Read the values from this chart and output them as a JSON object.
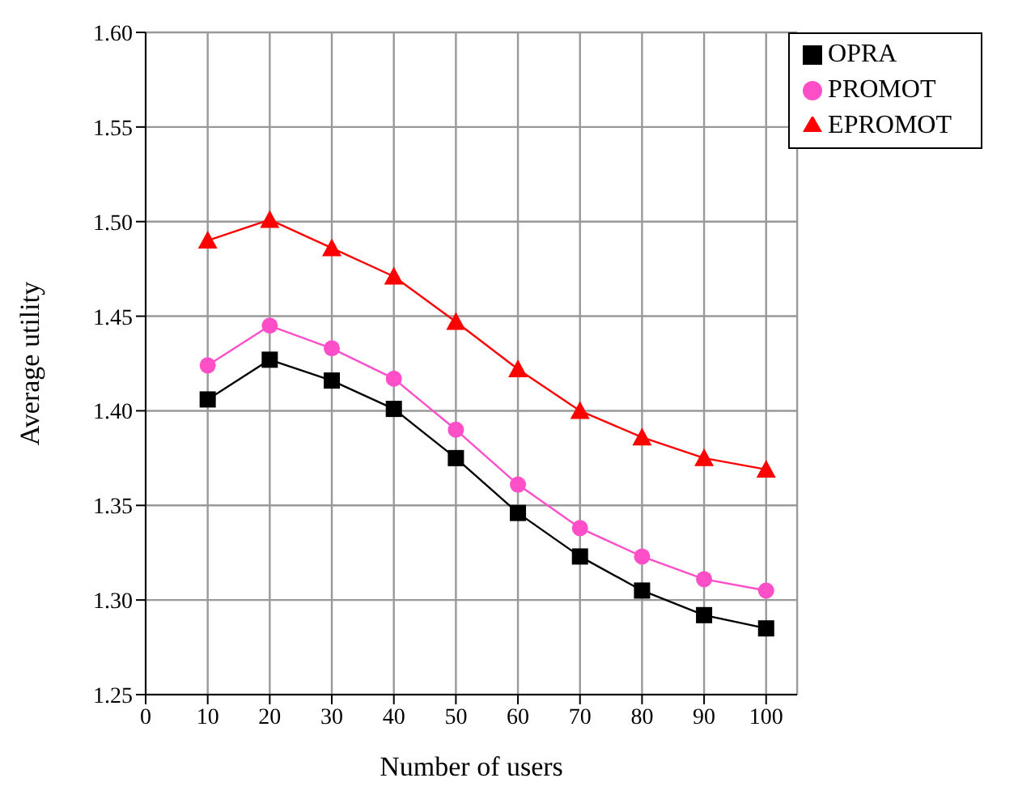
{
  "chart_data": {
    "type": "line",
    "xlabel": "Number of users",
    "ylabel": "Average utility",
    "x": [
      10,
      20,
      30,
      40,
      50,
      60,
      70,
      80,
      90,
      100
    ],
    "series": [
      {
        "name": "OPRA",
        "color": "#000000",
        "marker": "square",
        "values": [
          1.406,
          1.427,
          1.416,
          1.401,
          1.375,
          1.346,
          1.323,
          1.305,
          1.292,
          1.285
        ]
      },
      {
        "name": "PROMOT",
        "color": "#ff4fc8",
        "marker": "circle",
        "values": [
          1.424,
          1.445,
          1.433,
          1.417,
          1.39,
          1.361,
          1.338,
          1.323,
          1.311,
          1.305
        ]
      },
      {
        "name": "EPROMOT",
        "color": "#ff0000",
        "marker": "triangle",
        "values": [
          1.49,
          1.501,
          1.486,
          1.471,
          1.447,
          1.422,
          1.4,
          1.386,
          1.375,
          1.369
        ]
      }
    ],
    "xlim": [
      0,
      105
    ],
    "xticks": [
      0,
      10,
      20,
      30,
      40,
      50,
      60,
      70,
      80,
      90,
      100
    ],
    "ylim": [
      1.25,
      1.6
    ],
    "yticks": [
      {
        "value": 1.25,
        "label": "1.25"
      },
      {
        "value": 1.3,
        "label": "1.30"
      },
      {
        "value": 1.35,
        "label": "1.35"
      },
      {
        "value": 1.4,
        "label": "1.40"
      },
      {
        "value": 1.45,
        "label": "1.45"
      },
      {
        "value": 1.5,
        "label": "1.50"
      },
      {
        "value": 1.55,
        "label": "1.55"
      },
      {
        "value": 1.6,
        "label": "1.60"
      }
    ],
    "grid": true,
    "legend": "top right",
    "line_style": "solid"
  }
}
